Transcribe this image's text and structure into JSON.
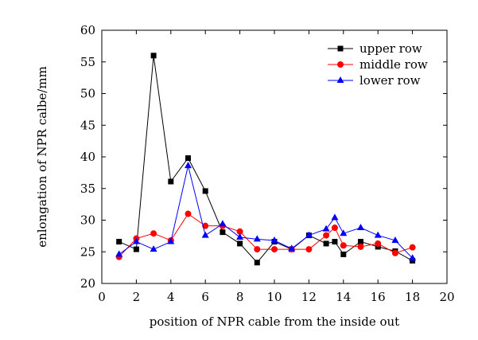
{
  "chart_data": {
    "type": "line",
    "xlabel": "position of NPR cable from the inside out",
    "ylabel": "enlongation of NPR calbe/mm",
    "xlim": [
      0,
      20
    ],
    "ylim": [
      20,
      60
    ],
    "xticks": [
      0,
      2,
      4,
      6,
      8,
      10,
      12,
      14,
      16,
      18,
      20
    ],
    "yticks": [
      20,
      25,
      30,
      35,
      40,
      45,
      50,
      55,
      60
    ],
    "grid": false,
    "legend_position": "top-right",
    "series": [
      {
        "name": "upper row",
        "color": "#000000",
        "marker": "square",
        "x": [
          1,
          2,
          3,
          4,
          5,
          6,
          7,
          8,
          9,
          10,
          11,
          12,
          13,
          13.5,
          14,
          15,
          16,
          17,
          18
        ],
        "y": [
          26.6,
          25.4,
          56.0,
          36.1,
          39.8,
          34.6,
          28.1,
          26.3,
          23.3,
          26.6,
          25.4,
          27.6,
          26.3,
          26.6,
          24.6,
          26.6,
          25.8,
          25.1,
          23.6
        ]
      },
      {
        "name": "middle row",
        "color": "#ff0000",
        "marker": "circle",
        "x": [
          1,
          2,
          3,
          4,
          5,
          6,
          7,
          8,
          9,
          10,
          11,
          12,
          13,
          13.5,
          14,
          15,
          16,
          17,
          18
        ],
        "y": [
          24.2,
          27.1,
          27.9,
          26.8,
          31.0,
          29.1,
          29.1,
          28.2,
          25.4,
          25.4,
          25.4,
          25.4,
          27.6,
          28.8,
          26.0,
          25.8,
          26.3,
          24.8,
          25.7
        ]
      },
      {
        "name": "lower row",
        "color": "#0000ff",
        "marker": "triangle",
        "x": [
          1,
          2,
          3,
          4,
          5,
          6,
          7,
          8,
          9,
          10,
          11,
          12,
          13,
          13.5,
          14,
          15,
          16,
          17,
          18
        ],
        "y": [
          24.6,
          26.6,
          25.4,
          26.6,
          38.6,
          27.6,
          29.4,
          27.3,
          27.0,
          26.8,
          25.5,
          27.6,
          28.6,
          30.4,
          27.9,
          28.8,
          27.6,
          26.8,
          24.0
        ]
      }
    ]
  }
}
